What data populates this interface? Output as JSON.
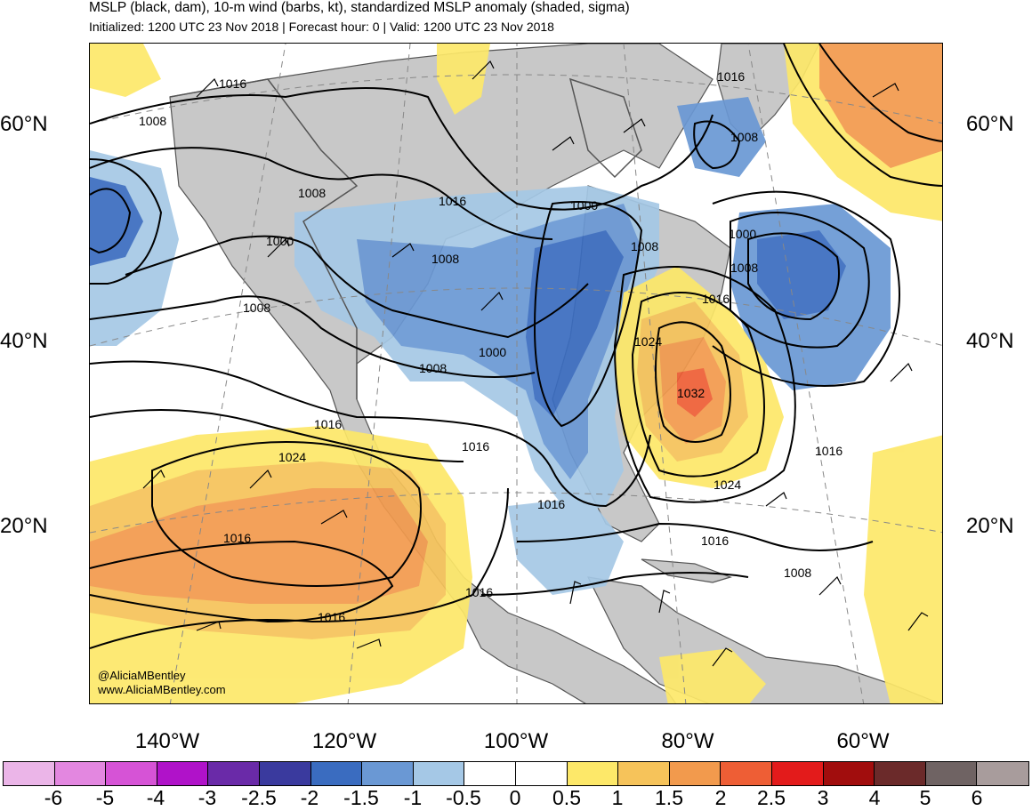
{
  "header": {
    "title": "MSLP (black, dam), 10-m wind (barbs, kt), standardized MSLP anomaly (shaded, sigma)",
    "subtitle": "Initialized: 1200 UTC 23 Nov 2018 | Forecast hour: 0 | Valid: 1200 UTC 23 Nov 2018"
  },
  "map": {
    "lat_labels": [
      "60°N",
      "40°N",
      "20°N"
    ],
    "lon_labels": [
      "140°W",
      "120°W",
      "100°W",
      "80°W",
      "60°W"
    ],
    "isobar_labels": [
      "1016",
      "1008",
      "1008",
      "1016",
      "1000",
      "1008",
      "1008",
      "1000",
      "1008",
      "1016",
      "1008",
      "1024",
      "1016",
      "1000",
      "1008",
      "1032",
      "1016",
      "1016",
      "1016",
      "1016",
      "1024",
      "1024",
      "1016",
      "1016",
      "1016",
      "1016",
      "1008",
      "1000",
      "1008"
    ],
    "credit": [
      "@AliciaMBentley",
      "www.AliciaMBentley.com"
    ],
    "colors": {
      "land": "#c8c8c8",
      "ocean": "#ffffff",
      "coast": "#555555",
      "isobar": "#000000"
    }
  },
  "colorbar": {
    "colors": [
      "#ebb5e8",
      "#e387e0",
      "#d653d6",
      "#b012c9",
      "#6a2aa8",
      "#3a3a9e",
      "#3a6cc0",
      "#6a98d4",
      "#a5c8e6",
      "#ffffff",
      "#ffffff",
      "#fde869",
      "#f6c35a",
      "#f29a4d",
      "#ee5e35",
      "#e31b1b",
      "#a10d0d",
      "#6b2a2a",
      "#6f6363",
      "#a89c9c"
    ],
    "labels": [
      "-6",
      "-5",
      "-4",
      "-3",
      "-2.5",
      "-2",
      "-1.5",
      "-1",
      "-0.5",
      "0",
      "0.5",
      "1",
      "1.5",
      "2",
      "2.5",
      "3",
      "4",
      "5",
      "6"
    ]
  }
}
